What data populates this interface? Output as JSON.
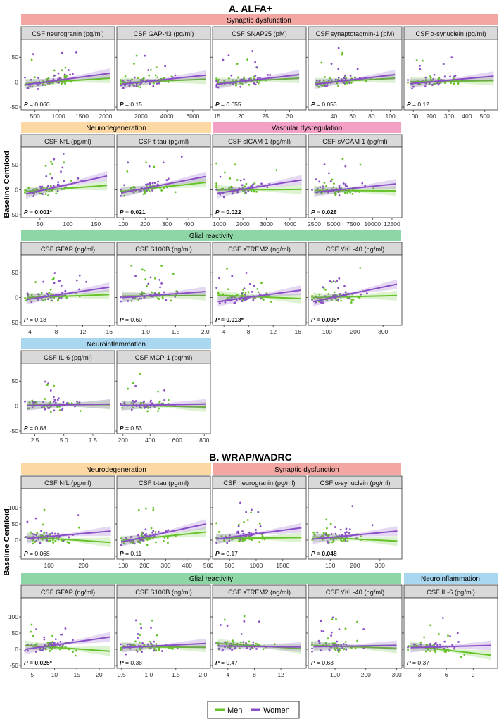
{
  "sections": [
    {
      "title": "A. ALFA+",
      "ylabel": "Baseline Centiloid"
    },
    {
      "title": "B. WRAP/WADRC",
      "ylabel": "Baseline Centiloid"
    }
  ],
  "groups": [
    {
      "label": "Synaptic dysfunction",
      "color": "#f2a7a3"
    },
    {
      "label": "Neurodegeneration",
      "color": "#fcd9a4"
    },
    {
      "label": "Vascular dysregulation",
      "color": "#f2a0c4"
    },
    {
      "label": "Glial reactivity",
      "color": "#8ed6a6"
    },
    {
      "label": "Neuroinflammation",
      "color": "#a9d7ef"
    },
    {
      "label": "Neurodegeneration",
      "color": "#fcd9a4"
    },
    {
      "label": "Synaptic dysfunction",
      "color": "#f2a7a3"
    },
    {
      "label": "Glial reactivity",
      "color": "#8ed6a6"
    },
    {
      "label": "Neuroinflammation",
      "color": "#a9d7ef"
    }
  ],
  "legend": {
    "men": "Men",
    "women": "Women",
    "men_color": "#66c228",
    "women_color": "#8a4fc7"
  },
  "chart_data": [
    {
      "type": "scatter",
      "panel_title": "CSF neurogranin (pg/ml)",
      "p_label": "0.060",
      "significant": false,
      "x_ticks": [
        "500",
        "1000",
        "1500",
        "2000"
      ],
      "y_ticks": [
        "-50",
        "0",
        "50"
      ],
      "x_range": [
        250,
        2150
      ],
      "y_range": [
        -50,
        80
      ],
      "fit": {
        "men": [
          [
            300,
            -3
          ],
          [
            2100,
            8
          ]
        ],
        "women": [
          [
            300,
            -5
          ],
          [
            2100,
            18
          ]
        ]
      }
    },
    {
      "type": "scatter",
      "panel_title": "CSF GAP-43 (pg/ml)",
      "p_label": "0.15",
      "significant": false,
      "x_ticks": [
        "2000",
        "4000",
        "6000"
      ],
      "y_ticks": [],
      "x_range": [
        300,
        7200
      ],
      "y_range": [
        -50,
        80
      ],
      "fit": {
        "men": [
          [
            500,
            -1
          ],
          [
            7000,
            6
          ]
        ],
        "women": [
          [
            500,
            -4
          ],
          [
            7000,
            14
          ]
        ]
      }
    },
    {
      "type": "scatter",
      "panel_title": "CSF SNAP25 (pM)",
      "p_label": "0.055",
      "significant": false,
      "x_ticks": [
        "15",
        "20",
        "25",
        "30"
      ],
      "y_ticks": [],
      "x_range": [
        14.5,
        33
      ],
      "y_range": [
        -50,
        80
      ],
      "fit": {
        "men": [
          [
            15,
            -1
          ],
          [
            32,
            8
          ]
        ],
        "women": [
          [
            15,
            -4
          ],
          [
            32,
            15
          ]
        ]
      }
    },
    {
      "type": "scatter",
      "panel_title": "CSF synaptotagmin-1 (pM)",
      "p_label": "0.053",
      "significant": false,
      "x_ticks": [
        "40",
        "60",
        "80",
        "100"
      ],
      "y_ticks": [],
      "x_range": [
        15,
        110
      ],
      "y_range": [
        -50,
        80
      ],
      "fit": {
        "men": [
          [
            20,
            -1
          ],
          [
            105,
            8
          ]
        ],
        "women": [
          [
            20,
            -4
          ],
          [
            105,
            15
          ]
        ]
      }
    },
    {
      "type": "scatter",
      "panel_title": "CSF α-synuclein (pg/ml)",
      "p_label": "0.12",
      "significant": false,
      "x_ticks": [
        "100",
        "200",
        "300",
        "400",
        "500"
      ],
      "y_ticks": [],
      "x_range": [
        60,
        560
      ],
      "y_range": [
        -50,
        80
      ],
      "fit": {
        "men": [
          [
            80,
            1
          ],
          [
            550,
            3
          ]
        ],
        "women": [
          [
            80,
            -3
          ],
          [
            550,
            12
          ]
        ]
      }
    },
    {
      "type": "scatter",
      "panel_title": "CSF NfL (pg/ml)",
      "p_label": "0.001*",
      "significant": true,
      "x_ticks": [
        "50",
        "100",
        "150"
      ],
      "y_ticks": [
        "-50",
        "0",
        "50"
      ],
      "x_range": [
        20,
        180
      ],
      "y_range": [
        -50,
        80
      ],
      "fit": {
        "men": [
          [
            25,
            -3
          ],
          [
            170,
            9
          ]
        ],
        "women": [
          [
            25,
            -8
          ],
          [
            170,
            28
          ]
        ]
      }
    },
    {
      "type": "scatter",
      "panel_title": "CSF t-tau (pg/ml)",
      "p_label": "0.021",
      "significant": true,
      "x_ticks": [
        "100",
        "200",
        "300",
        "400"
      ],
      "y_ticks": [],
      "x_range": [
        80,
        490
      ],
      "y_range": [
        -50,
        80
      ],
      "fit": {
        "men": [
          [
            90,
            -3
          ],
          [
            480,
            15
          ]
        ],
        "women": [
          [
            90,
            -6
          ],
          [
            480,
            27
          ]
        ]
      }
    },
    {
      "type": "scatter",
      "panel_title": "CSF sICAM-1 (pg/ml)",
      "p_label": "0.022",
      "significant": true,
      "x_ticks": [
        "1000",
        "2000",
        "3000",
        "4000"
      ],
      "y_ticks": [],
      "x_range": [
        800,
        4600
      ],
      "y_range": [
        -50,
        80
      ],
      "fit": {
        "men": [
          [
            900,
            0
          ],
          [
            4500,
            1
          ]
        ],
        "women": [
          [
            900,
            -7
          ],
          [
            4500,
            20
          ]
        ]
      }
    },
    {
      "type": "scatter",
      "panel_title": "CSF sVCAM-1 (pg/ml)",
      "p_label": "0.028",
      "significant": true,
      "x_ticks": [
        "2500",
        "5000",
        "7500",
        "10000",
        "12500"
      ],
      "y_ticks": [],
      "x_range": [
        2000,
        13500
      ],
      "y_range": [
        -50,
        80
      ],
      "fit": {
        "men": [
          [
            2500,
            -1
          ],
          [
            13000,
            -2
          ]
        ],
        "women": [
          [
            2500,
            -5
          ],
          [
            13000,
            12
          ]
        ]
      }
    },
    {
      "type": "scatter",
      "panel_title": "CSF GFAP (ng/ml)",
      "p_label": "0.18",
      "significant": false,
      "x_ticks": [
        "4",
        "8",
        "12",
        "16"
      ],
      "y_ticks": [
        "-50",
        "0",
        "50"
      ],
      "x_range": [
        3,
        16.5
      ],
      "y_range": [
        -50,
        80
      ],
      "fit": {
        "men": [
          [
            3.5,
            0
          ],
          [
            16,
            6
          ]
        ],
        "women": [
          [
            3.5,
            -4
          ],
          [
            16,
            21
          ]
        ]
      }
    },
    {
      "type": "scatter",
      "panel_title": "CSF S100B (ng/ml)",
      "p_label": "0.60",
      "significant": false,
      "x_ticks": [
        "1.0",
        "1.5",
        "2.0"
      ],
      "y_ticks": [],
      "x_range": [
        0.55,
        2.05
      ],
      "y_range": [
        -50,
        80
      ],
      "fit": {
        "men": [
          [
            0.6,
            3
          ],
          [
            2.0,
            4
          ]
        ],
        "women": [
          [
            0.6,
            0
          ],
          [
            2.0,
            12
          ]
        ]
      }
    },
    {
      "type": "scatter",
      "panel_title": "CSF sTREM2 (ng/ml)",
      "p_label": "0.013*",
      "significant": true,
      "x_ticks": [
        "4",
        "8",
        "12",
        "16"
      ],
      "y_ticks": [],
      "x_range": [
        2.5,
        17
      ],
      "y_range": [
        -50,
        80
      ],
      "fit": {
        "men": [
          [
            3,
            5
          ],
          [
            16.5,
            -2
          ]
        ],
        "women": [
          [
            3,
            -8
          ],
          [
            16.5,
            15
          ]
        ]
      }
    },
    {
      "type": "scatter",
      "panel_title": "CSF YKL-40 (ng/ml)",
      "p_label": "0.005*",
      "significant": true,
      "x_ticks": [
        "100",
        "200",
        "300"
      ],
      "y_ticks": [],
      "x_range": [
        40,
        360
      ],
      "y_range": [
        -50,
        80
      ],
      "fit": {
        "men": [
          [
            50,
            0
          ],
          [
            350,
            4
          ]
        ],
        "women": [
          [
            50,
            -8
          ],
          [
            350,
            27
          ]
        ]
      }
    },
    {
      "type": "scatter",
      "panel_title": "CSF IL-6 (pg/ml)",
      "p_label": "0.88",
      "significant": false,
      "x_ticks": [
        "2.5",
        "5.0",
        "7.5"
      ],
      "y_ticks": [
        "-50",
        "0",
        "50"
      ],
      "x_range": [
        1.5,
        9.2
      ],
      "y_range": [
        -50,
        80
      ],
      "fit": {
        "men": [
          [
            1.8,
            2
          ],
          [
            9,
            3
          ]
        ],
        "women": [
          [
            1.8,
            1
          ],
          [
            9,
            4
          ]
        ]
      }
    },
    {
      "type": "scatter",
      "panel_title": "CSF MCP-1 (pg/ml)",
      "p_label": "0.53",
      "significant": false,
      "x_ticks": [
        "200",
        "400",
        "600",
        "800"
      ],
      "y_ticks": [],
      "x_range": [
        170,
        830
      ],
      "y_range": [
        -50,
        80
      ],
      "fit": {
        "men": [
          [
            190,
            2
          ],
          [
            810,
            -2
          ]
        ],
        "women": [
          [
            190,
            1
          ],
          [
            810,
            4
          ]
        ]
      }
    },
    {
      "type": "scatter",
      "panel_title": "CSF NfL (pg/ml)",
      "p_label": "0.068",
      "significant": false,
      "x_ticks": [
        "100",
        "200"
      ],
      "y_ticks": [
        "0",
        "50",
        "100"
      ],
      "x_range": [
        25,
        285
      ],
      "y_range": [
        -50,
        150
      ],
      "fit": {
        "men": [
          [
            35,
            10
          ],
          [
            280,
            -7
          ]
        ],
        "women": [
          [
            35,
            5
          ],
          [
            280,
            28
          ]
        ]
      }
    },
    {
      "type": "scatter",
      "panel_title": "CSF t-tau (pg/ml)",
      "p_label": "0.11",
      "significant": false,
      "x_ticks": [
        "100",
        "200",
        "300",
        "400",
        "500"
      ],
      "y_ticks": [],
      "x_range": [
        80,
        500
      ],
      "y_range": [
        -50,
        150
      ],
      "fit": {
        "men": [
          [
            90,
            -2
          ],
          [
            490,
            25
          ]
        ],
        "women": [
          [
            90,
            -6
          ],
          [
            490,
            50
          ]
        ]
      }
    },
    {
      "type": "scatter",
      "panel_title": "CSF neurogranin (pg/ml)",
      "p_label": "0.17",
      "significant": false,
      "x_ticks": [
        "500",
        "1000",
        "1500"
      ],
      "y_ticks": [],
      "x_range": [
        220,
        1900
      ],
      "y_range": [
        -50,
        150
      ],
      "fit": {
        "men": [
          [
            250,
            5
          ],
          [
            1850,
            8
          ]
        ],
        "women": [
          [
            250,
            3
          ],
          [
            1850,
            38
          ]
        ]
      }
    },
    {
      "type": "scatter",
      "panel_title": "CSF α-synuclein (pg/ml)",
      "p_label": "0.048",
      "significant": true,
      "x_ticks": [
        "100",
        "200",
        "300"
      ],
      "y_ticks": [],
      "x_range": [
        20,
        380
      ],
      "y_range": [
        -50,
        150
      ],
      "fit": {
        "men": [
          [
            30,
            10
          ],
          [
            370,
            -3
          ]
        ],
        "women": [
          [
            30,
            3
          ],
          [
            370,
            28
          ]
        ]
      }
    },
    {
      "type": "scatter",
      "panel_title": "CSF GFAP (ng/ml)",
      "p_label": "0.025*",
      "significant": true,
      "x_ticks": [
        "5",
        "10",
        "15",
        "20"
      ],
      "y_ticks": [
        "-50",
        "0",
        "50",
        "100"
      ],
      "x_range": [
        3,
        23
      ],
      "y_range": [
        -50,
        150
      ],
      "fit": {
        "men": [
          [
            3.5,
            12
          ],
          [
            22.5,
            -6
          ]
        ],
        "women": [
          [
            3.5,
            0
          ],
          [
            22.5,
            38
          ]
        ]
      }
    },
    {
      "type": "scatter",
      "panel_title": "CSF S100B (ng/ml)",
      "p_label": "0.38",
      "significant": false,
      "x_ticks": [
        "0.5",
        "1.0",
        "1.5",
        "2.0"
      ],
      "y_ticks": [],
      "x_range": [
        0.45,
        2.1
      ],
      "y_range": [
        -50,
        150
      ],
      "fit": {
        "men": [
          [
            0.5,
            8
          ],
          [
            2.05,
            6
          ]
        ],
        "women": [
          [
            0.5,
            5
          ],
          [
            2.05,
            18
          ]
        ]
      }
    },
    {
      "type": "scatter",
      "panel_title": "CSF sTREM2 (ng/ml)",
      "p_label": "0.47",
      "significant": false,
      "x_ticks": [
        "4",
        "8",
        "12"
      ],
      "y_ticks": [],
      "x_range": [
        2,
        15.5
      ],
      "y_range": [
        -50,
        150
      ],
      "fit": {
        "men": [
          [
            2.5,
            18
          ],
          [
            15,
            2
          ]
        ],
        "women": [
          [
            2.5,
            10
          ],
          [
            15,
            7
          ]
        ]
      }
    },
    {
      "type": "scatter",
      "panel_title": "CSF YKL-40 (ng/ml)",
      "p_label": "0.63",
      "significant": false,
      "x_ticks": [
        "100",
        "200",
        "300"
      ],
      "y_ticks": [],
      "x_range": [
        20,
        310
      ],
      "y_range": [
        -50,
        150
      ],
      "fit": {
        "men": [
          [
            30,
            12
          ],
          [
            300,
            3
          ]
        ],
        "women": [
          [
            30,
            8
          ],
          [
            300,
            12
          ]
        ]
      }
    },
    {
      "type": "scatter",
      "panel_title": "CSF IL-6 (pg/ml)",
      "p_label": "0.37",
      "significant": false,
      "x_ticks": [
        "3",
        "6",
        "9"
      ],
      "y_ticks": [],
      "x_range": [
        1.5,
        11.5
      ],
      "y_range": [
        -50,
        150
      ],
      "fit": {
        "men": [
          [
            2,
            10
          ],
          [
            11,
            -18
          ]
        ],
        "women": [
          [
            2,
            5
          ],
          [
            11,
            12
          ]
        ]
      }
    }
  ]
}
